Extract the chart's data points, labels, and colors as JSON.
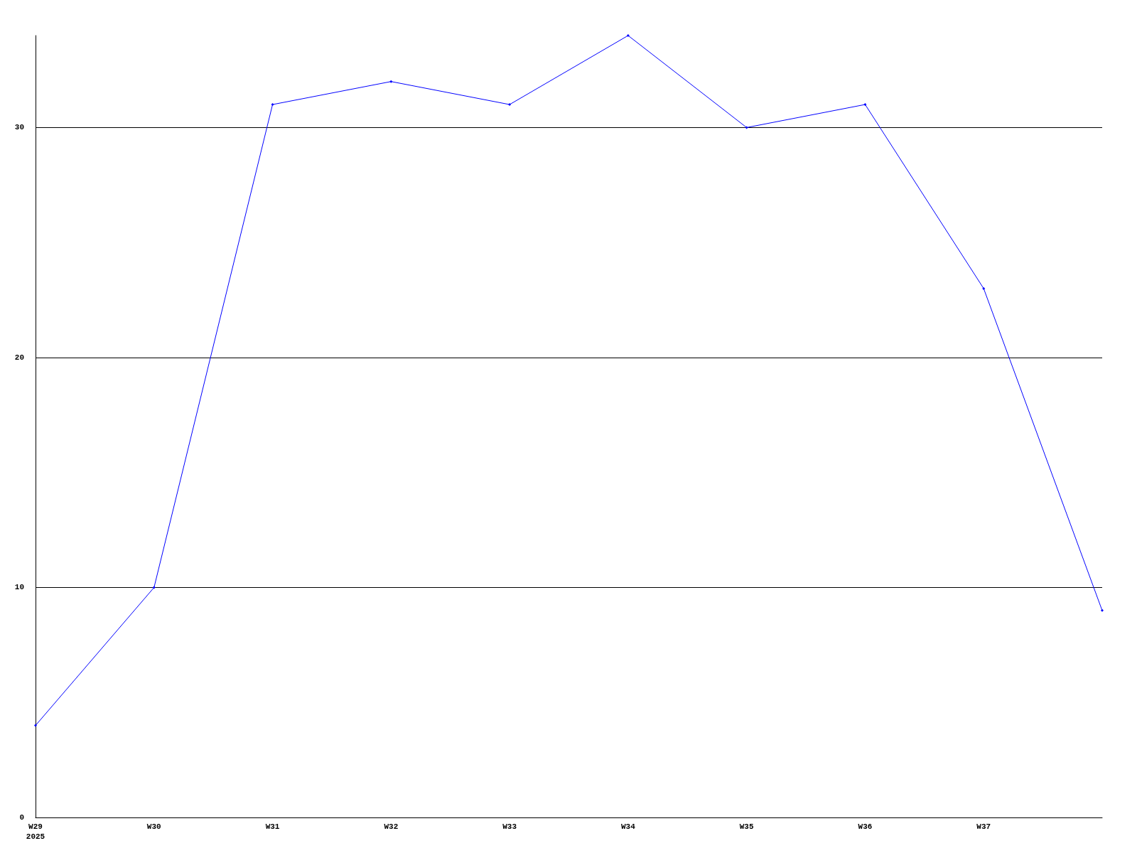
{
  "chart_data": {
    "type": "line",
    "categories": [
      "W29\n2025",
      "W30",
      "W31",
      "W32",
      "W33",
      "W34",
      "W35",
      "W36",
      "W37",
      null
    ],
    "series": [
      {
        "color": "#0000ff",
        "values": [
          4,
          10,
          31,
          32,
          31,
          34,
          30,
          31,
          23,
          9
        ]
      }
    ],
    "ylim": [
      0,
      34
    ],
    "yticks": [
      0,
      10,
      20,
      30
    ],
    "grid": "y",
    "marker": "diamond",
    "line_style": "solid"
  }
}
